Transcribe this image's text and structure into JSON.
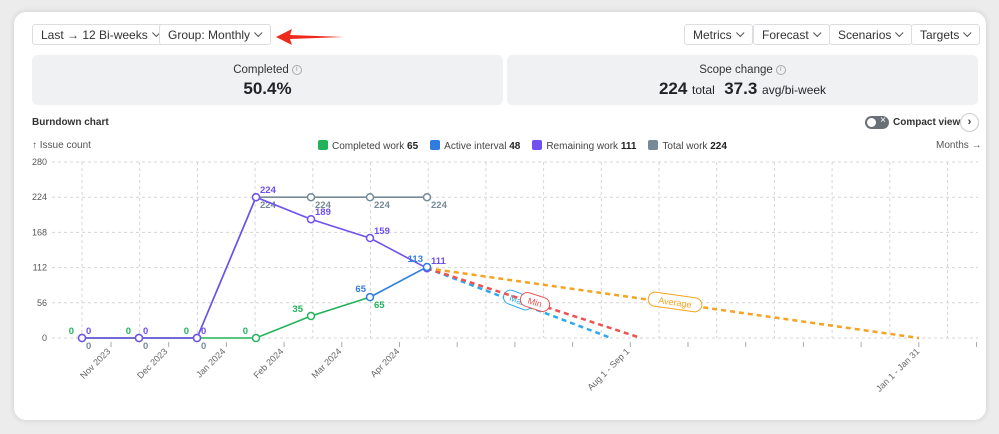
{
  "toolbar": {
    "range": "Last → 12 Bi-weeks",
    "group": "Group: Monthly",
    "metrics": "Metrics",
    "forecast": "Forecast",
    "scenarios": "Scenarios",
    "targets": "Targets"
  },
  "stats": {
    "completed_label": "Completed",
    "completed_value": "50.4%",
    "scope_label": "Scope change",
    "scope_total": "224",
    "scope_total_unit": "total",
    "scope_avg": "37.3",
    "scope_avg_unit": "avg/bi-week"
  },
  "chart_header": {
    "title": "Burndown chart",
    "compact_view": "Compact view",
    "y_axis_hint": "↑ Issue count",
    "x_axis_hint": "Months →"
  },
  "legend": [
    {
      "label": "Completed work",
      "value": "65",
      "color": "#22b35a"
    },
    {
      "label": "Active interval",
      "value": "48",
      "color": "#2f7de1"
    },
    {
      "label": "Remaining work",
      "value": "111",
      "color": "#7050ee"
    },
    {
      "label": "Total work",
      "value": "224",
      "color": "#768a98"
    }
  ],
  "chart_data": {
    "type": "line",
    "ylim": [
      0,
      280
    ],
    "yticks": [
      0,
      56,
      112,
      168,
      224,
      280
    ],
    "month_labels": [
      "Nov 2023",
      "Dec 2023",
      "Jan 2024",
      "Feb 2024",
      "Mar 2024",
      "Apr 2024"
    ],
    "forecast_labels": [
      "Aug 1 - Sep 1",
      "Jan 1 - Jan 31"
    ],
    "series": [
      {
        "name": "Completed work",
        "color": "#22b35a",
        "values": [
          0,
          0,
          0,
          0,
          35,
          65,
          null
        ]
      },
      {
        "name": "Active interval",
        "color": "#2f7de1",
        "values": [
          null,
          null,
          null,
          null,
          null,
          65,
          113
        ]
      },
      {
        "name": "Remaining work",
        "color": "#7050ee",
        "values": [
          0,
          0,
          0,
          224,
          189,
          159,
          111
        ]
      },
      {
        "name": "Total work",
        "color": "#768a98",
        "values": [
          0,
          0,
          0,
          224,
          224,
          224,
          224
        ]
      }
    ],
    "forecasts": [
      {
        "name": "Max",
        "color": "#2fa8f0",
        "end_label": "Aug 1 - Sep 1",
        "end_value": 0
      },
      {
        "name": "Min",
        "color": "#f0504f",
        "end_label": "Aug 1 - Sep 1",
        "end_value": 0
      },
      {
        "name": "Average",
        "color": "#f5a320",
        "end_label": "Jan 1 - Jan 31",
        "end_value": 0
      }
    ]
  }
}
